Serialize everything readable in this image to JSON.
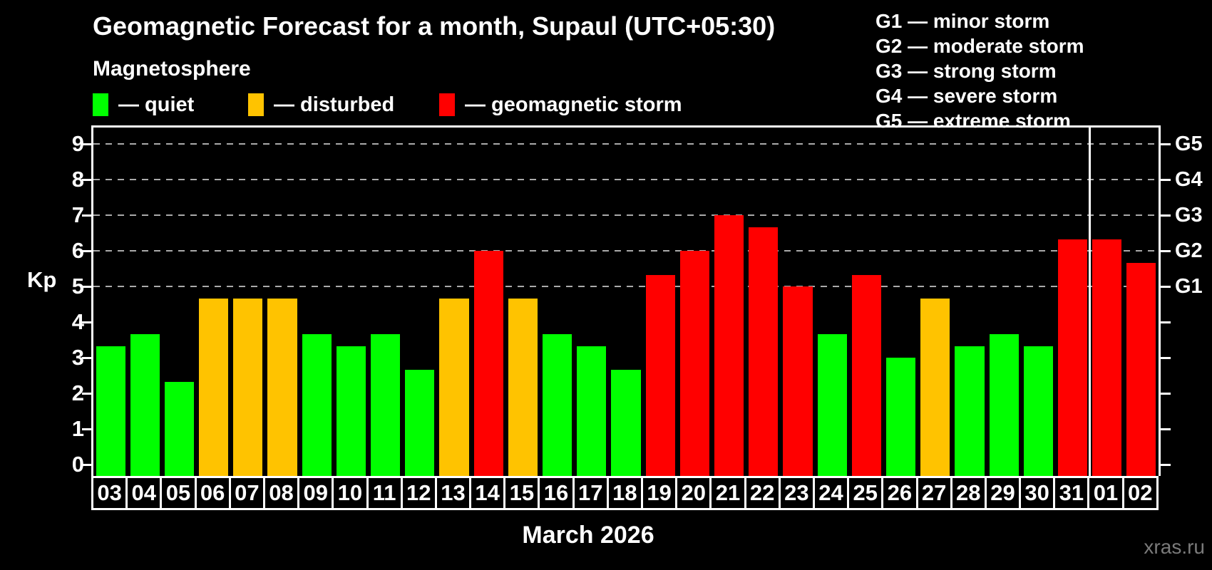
{
  "header": {
    "title": "Geomagnetic Forecast for a month, Supaul (UTC+05:30)",
    "subtitle": "Magnetosphere"
  },
  "legend": {
    "items": [
      {
        "name": "quiet",
        "label": "— quiet",
        "color": "#00ff00"
      },
      {
        "name": "disturbed",
        "label": "— disturbed",
        "color": "#ffc300"
      },
      {
        "name": "storm",
        "label": "— geomagnetic storm",
        "color": "#ff0000"
      }
    ]
  },
  "g_legend": {
    "lines": [
      "G1 — minor storm",
      "G2 — moderate storm",
      "G3 — strong storm",
      "G4 — severe storm",
      "G5 — extreme storm"
    ]
  },
  "chart_data": {
    "type": "bar",
    "title": "Geomagnetic Forecast for a month, Supaul (UTC+05:30)",
    "xlabel": "March 2026",
    "ylabel": "Kp",
    "ylim": [
      0,
      9
    ],
    "y_ticks": [
      0,
      1,
      2,
      3,
      4,
      5,
      6,
      7,
      8,
      9
    ],
    "gridlines_at_kp": [
      5,
      6,
      7,
      8,
      9
    ],
    "grid_style": "dashed gray, horizontal only",
    "categories": [
      "03",
      "04",
      "05",
      "06",
      "07",
      "08",
      "09",
      "10",
      "11",
      "12",
      "13",
      "14",
      "15",
      "16",
      "17",
      "18",
      "19",
      "20",
      "21",
      "22",
      "23",
      "24",
      "25",
      "26",
      "27",
      "28",
      "29",
      "30",
      "31",
      "01",
      "02"
    ],
    "values": [
      3.33,
      3.67,
      2.33,
      4.67,
      4.67,
      4.67,
      3.67,
      3.33,
      3.67,
      2.67,
      4.67,
      6,
      4.67,
      3.67,
      3.33,
      2.67,
      5.33,
      6,
      7,
      6.67,
      5,
      3.67,
      5.33,
      3,
      4.67,
      3.33,
      3.67,
      3.33,
      6.33,
      6.33,
      5.67
    ],
    "statuses": [
      "quiet",
      "quiet",
      "quiet",
      "disturbed",
      "disturbed",
      "disturbed",
      "quiet",
      "quiet",
      "quiet",
      "quiet",
      "disturbed",
      "storm",
      "disturbed",
      "quiet",
      "quiet",
      "quiet",
      "storm",
      "storm",
      "storm",
      "storm",
      "storm",
      "quiet",
      "storm",
      "quiet",
      "disturbed",
      "quiet",
      "quiet",
      "quiet",
      "storm",
      "storm",
      "storm"
    ],
    "status_colors": {
      "quiet": "#00ff00",
      "disturbed": "#ffc300",
      "storm": "#ff0000"
    },
    "right_axis": {
      "labels": [
        {
          "label": "G1",
          "kp": 5
        },
        {
          "label": "G2",
          "kp": 6
        },
        {
          "label": "G3",
          "kp": 7
        },
        {
          "label": "G4",
          "kp": 8
        },
        {
          "label": "G5",
          "kp": 9
        }
      ]
    },
    "month_separator_after_category": "31",
    "legend_position": "top"
  },
  "footer": {
    "month_label": "March 2026",
    "watermark": "xras.ru"
  }
}
